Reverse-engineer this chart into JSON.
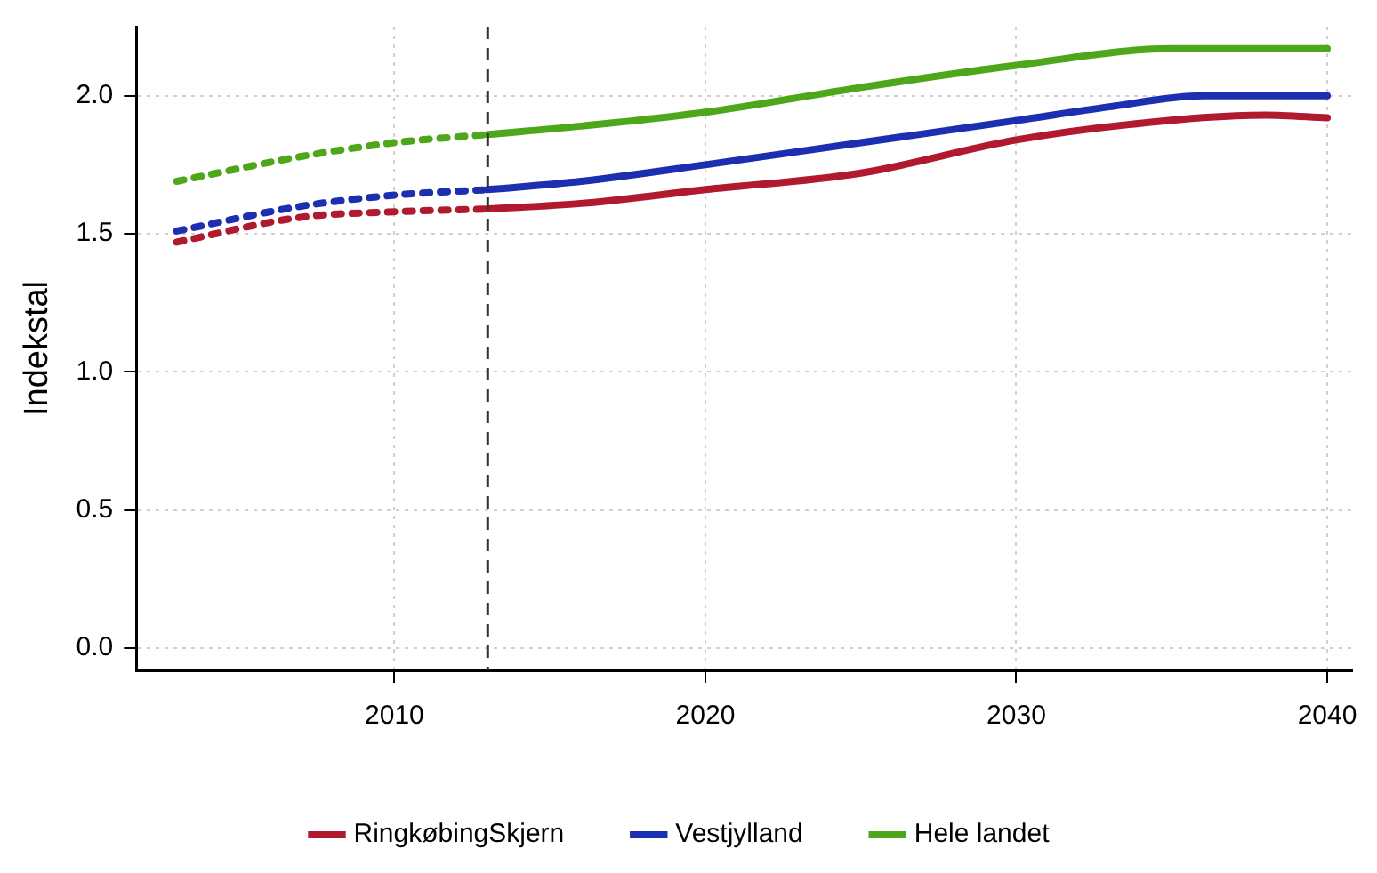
{
  "chart_data": {
    "type": "line",
    "ylabel": "Indekstal",
    "xlim": [
      2001.7,
      2040.8
    ],
    "ylim": [
      -0.08,
      2.25
    ],
    "xticks": [
      2010,
      2020,
      2030,
      2040
    ],
    "yticks": [
      {
        "value": 0,
        "label": "0.0"
      },
      {
        "value": 0.5,
        "label": "0.5"
      },
      {
        "value": 1,
        "label": "1.0"
      },
      {
        "value": 1.5,
        "label": "1.5"
      },
      {
        "value": 2,
        "label": "2.0"
      }
    ],
    "grid": true,
    "legend": "bottom",
    "ref_lines": [
      {
        "axis": "x",
        "value": 2013,
        "color": "#333333",
        "line_style": "dashed"
      }
    ],
    "series": [
      {
        "color": "#b0192e",
        "line_style": "dotted",
        "x": [
          2003,
          2007,
          2010,
          2013
        ],
        "values": [
          1.47,
          1.56,
          1.58,
          1.59
        ]
      },
      {
        "color": "#1c2fb0",
        "line_style": "dotted",
        "x": [
          2003,
          2007,
          2010,
          2013
        ],
        "values": [
          1.51,
          1.6,
          1.64,
          1.66
        ]
      },
      {
        "color": "#4ea61a",
        "line_style": "dotted",
        "x": [
          2003,
          2007,
          2010,
          2013
        ],
        "values": [
          1.69,
          1.78,
          1.83,
          1.86
        ]
      },
      {
        "name": "RingkøbingSkjern",
        "color": "#b0192e",
        "line_style": "solid",
        "x": [
          2013,
          2016,
          2020,
          2025,
          2030,
          2034,
          2038,
          2040
        ],
        "values": [
          1.59,
          1.61,
          1.66,
          1.72,
          1.84,
          1.9,
          1.93,
          1.92
        ]
      },
      {
        "name": "Vestjylland",
        "color": "#1c2fb0",
        "line_style": "solid",
        "x": [
          2013,
          2016,
          2020,
          2025,
          2030,
          2033,
          2036,
          2040
        ],
        "values": [
          1.66,
          1.69,
          1.75,
          1.83,
          1.91,
          1.96,
          2.0,
          2.0
        ]
      },
      {
        "name": "Hele landet",
        "color": "#4ea61a",
        "line_style": "solid",
        "x": [
          2013,
          2016,
          2020,
          2025,
          2030,
          2035,
          2037,
          2040
        ],
        "values": [
          1.86,
          1.89,
          1.94,
          2.03,
          2.11,
          2.17,
          2.17,
          2.17
        ]
      }
    ]
  }
}
